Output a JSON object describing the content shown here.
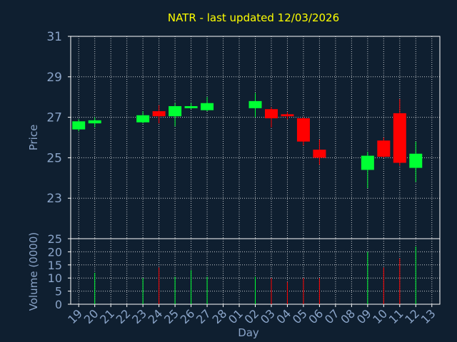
{
  "chart_data": [
    {
      "type": "candlestick",
      "title": "NATR - last updated 12/03/2026",
      "ylabel": "Price",
      "ylim": [
        21,
        31
      ],
      "yticks": [
        "31",
        "29",
        "27",
        "25",
        "23"
      ],
      "grid": true,
      "colors": {
        "up": "#00ff33",
        "down": "#ff0000",
        "grid": "#ffffff",
        "title": "#ffff00",
        "text": "#8aa4c8",
        "background": "#0f1f30"
      },
      "candles": [
        {
          "day": "19",
          "open": 26.4,
          "high": 26.9,
          "low": 26.3,
          "close": 26.8
        },
        {
          "day": "20",
          "open": 26.7,
          "high": 27.0,
          "low": 26.5,
          "close": 26.85
        },
        {
          "day": "23",
          "open": 26.75,
          "high": 27.3,
          "low": 26.7,
          "close": 27.1
        },
        {
          "day": "24",
          "open": 27.3,
          "high": 27.6,
          "low": 26.7,
          "close": 27.05
        },
        {
          "day": "25",
          "open": 27.05,
          "high": 27.7,
          "low": 26.55,
          "close": 27.55
        },
        {
          "day": "26",
          "open": 27.45,
          "high": 27.7,
          "low": 27.4,
          "close": 27.55
        },
        {
          "day": "27",
          "open": 27.35,
          "high": 28.0,
          "low": 27.3,
          "close": 27.7
        },
        {
          "day": "02",
          "open": 27.45,
          "high": 28.2,
          "low": 27.0,
          "close": 27.8
        },
        {
          "day": "03",
          "open": 27.4,
          "high": 27.5,
          "low": 26.5,
          "close": 26.95
        },
        {
          "day": "04",
          "open": 27.15,
          "high": 27.25,
          "low": 26.9,
          "close": 27.05
        },
        {
          "day": "05",
          "open": 26.95,
          "high": 27.0,
          "low": 25.6,
          "close": 25.8
        },
        {
          "day": "06",
          "open": 25.4,
          "high": 25.9,
          "low": 24.65,
          "close": 25.0
        },
        {
          "day": "09",
          "open": 24.4,
          "high": 25.3,
          "low": 23.5,
          "close": 25.1
        },
        {
          "day": "10",
          "open": 25.85,
          "high": 26.0,
          "low": 25.0,
          "close": 25.05
        },
        {
          "day": "11",
          "open": 27.2,
          "high": 27.9,
          "low": 24.6,
          "close": 24.75
        },
        {
          "day": "12",
          "open": 24.5,
          "high": 25.8,
          "low": 23.8,
          "close": 25.2
        }
      ]
    },
    {
      "type": "bar",
      "ylabel": "Volume (0000)",
      "xlabel": "Day",
      "ylim": [
        0,
        25
      ],
      "yticks": [
        "25",
        "20",
        "15",
        "10",
        "5",
        "0"
      ],
      "categories": [
        "19",
        "20",
        "21",
        "22",
        "23",
        "24",
        "25",
        "26",
        "27",
        "28",
        "01",
        "02",
        "03",
        "04",
        "05",
        "06",
        "07",
        "08",
        "09",
        "10",
        "11",
        "12",
        "13"
      ],
      "volumes": [
        {
          "day": "20",
          "value": 12,
          "dir": "up"
        },
        {
          "day": "23",
          "value": 10,
          "dir": "up"
        },
        {
          "day": "24",
          "value": 14,
          "dir": "down"
        },
        {
          "day": "25",
          "value": 10.5,
          "dir": "up"
        },
        {
          "day": "26",
          "value": 13,
          "dir": "up"
        },
        {
          "day": "27",
          "value": 10.5,
          "dir": "up"
        },
        {
          "day": "02",
          "value": 10.5,
          "dir": "up"
        },
        {
          "day": "03",
          "value": 10,
          "dir": "down"
        },
        {
          "day": "04",
          "value": 8.5,
          "dir": "down"
        },
        {
          "day": "05",
          "value": 10,
          "dir": "down"
        },
        {
          "day": "06",
          "value": 10,
          "dir": "down"
        },
        {
          "day": "09",
          "value": 20,
          "dir": "up"
        },
        {
          "day": "10",
          "value": 14,
          "dir": "down"
        },
        {
          "day": "11",
          "value": 17.5,
          "dir": "down"
        },
        {
          "day": "12",
          "value": 22,
          "dir": "up"
        }
      ]
    }
  ]
}
